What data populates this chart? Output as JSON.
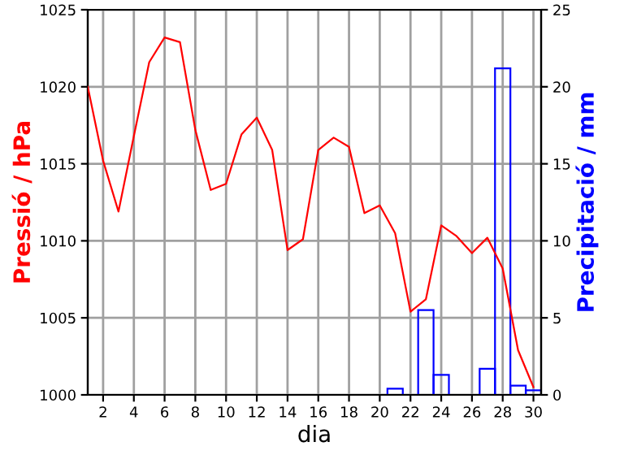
{
  "chart_data": {
    "type": "line",
    "xlabel": "dia",
    "ylabel": "Pressió / hPa",
    "y2label": "Precipitació / mm",
    "xlim": [
      1,
      30.5
    ],
    "xticks": [
      2,
      4,
      6,
      8,
      10,
      12,
      14,
      16,
      18,
      20,
      22,
      24,
      26,
      28,
      30
    ],
    "ylim": [
      1000,
      1025
    ],
    "yticks": [
      1000,
      1005,
      1010,
      1015,
      1020,
      1025
    ],
    "y2lim": [
      0,
      25
    ],
    "y2ticks": [
      0,
      5,
      10,
      15,
      20,
      25
    ],
    "grid": true,
    "legend": false,
    "series": [
      {
        "color": "#ff0000",
        "x": [
          1,
          2,
          3,
          4,
          5,
          6,
          7,
          8,
          9,
          10,
          11,
          12,
          13,
          14,
          15,
          16,
          17,
          18,
          19,
          20,
          21,
          22,
          23,
          24,
          25,
          26,
          27,
          28,
          29,
          30
        ],
        "values": [
          1020,
          1015.2,
          1011.9,
          1016.8,
          1021.6,
          1023.2,
          1022.9,
          1017.2,
          1013.3,
          1013.7,
          1016.9,
          1018,
          1015.9,
          1009.4,
          1010.1,
          1015.9,
          1016.7,
          1016.1,
          1011.8,
          1012.3,
          1010.5,
          1005.4,
          1006.2,
          1011,
          1010.3,
          1009.2,
          1010.2,
          1008.2,
          1002.9,
          1000.5
        ]
      },
      {
        "type": "bar",
        "axis": "y2",
        "color": "#0000ff",
        "x": [
          21,
          23,
          24,
          27,
          28,
          29,
          30
        ],
        "values": [
          0.4,
          5.5,
          1.3,
          1.7,
          21.2,
          0.6,
          0.3
        ]
      }
    ]
  }
}
